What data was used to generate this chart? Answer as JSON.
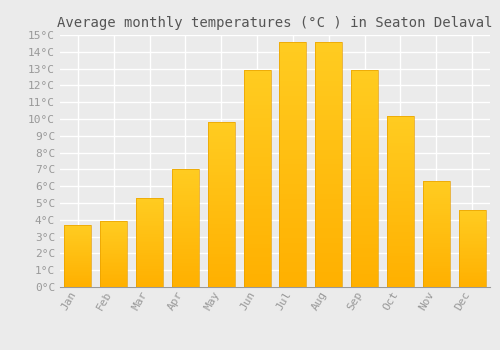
{
  "title": "Average monthly temperatures (°C ) in Seaton Delaval",
  "months": [
    "Jan",
    "Feb",
    "Mar",
    "Apr",
    "May",
    "Jun",
    "Jul",
    "Aug",
    "Sep",
    "Oct",
    "Nov",
    "Dec"
  ],
  "values": [
    3.7,
    3.9,
    5.3,
    7.0,
    9.8,
    12.9,
    14.6,
    14.6,
    12.9,
    10.2,
    6.3,
    4.6
  ],
  "bar_color_top": "#FFC020",
  "bar_color_bottom": "#FFB000",
  "bar_edge_color": "#E8A000",
  "ylim": [
    0,
    15
  ],
  "yticks": [
    0,
    1,
    2,
    3,
    4,
    5,
    6,
    7,
    8,
    9,
    10,
    11,
    12,
    13,
    14,
    15
  ],
  "background_color": "#EBEBEB",
  "grid_color": "#FFFFFF",
  "title_fontsize": 10,
  "tick_fontsize": 8,
  "font_family": "monospace",
  "tick_color": "#999999",
  "bar_width": 0.75
}
